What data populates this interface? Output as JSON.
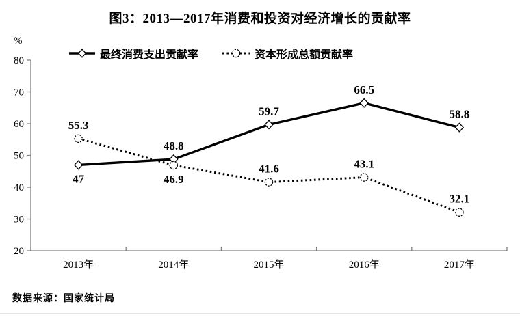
{
  "source_note": "数据来源：国家统计局",
  "colors": {
    "series_line": "#000000",
    "axis": "#808080",
    "text": "#000000",
    "background": "#ffffff"
  },
  "chart_data": {
    "type": "line",
    "title": "图3：2013—2017年消费和投资对经济增长的贡献率",
    "y_unit": "%",
    "xlabel": "",
    "ylabel": "%",
    "categories": [
      "2013年",
      "2014年",
      "2015年",
      "2016年",
      "2017年"
    ],
    "ylim": [
      20,
      80
    ],
    "yticks": [
      20,
      30,
      40,
      50,
      60,
      70,
      80
    ],
    "grid": false,
    "legend_position": "top",
    "series": [
      {
        "name": "最终消费支出贡献率",
        "line_style": "solid",
        "marker": "diamond",
        "values": [
          47,
          48.8,
          59.7,
          66.5,
          58.8
        ],
        "label_positions": [
          "below",
          "above",
          "above",
          "above",
          "above"
        ]
      },
      {
        "name": "资本形成总额贡献率",
        "line_style": "dotted",
        "marker": "circle",
        "values": [
          55.3,
          46.9,
          41.6,
          43.1,
          32.1
        ],
        "label_positions": [
          "above",
          "below",
          "above",
          "above",
          "above"
        ]
      }
    ]
  }
}
